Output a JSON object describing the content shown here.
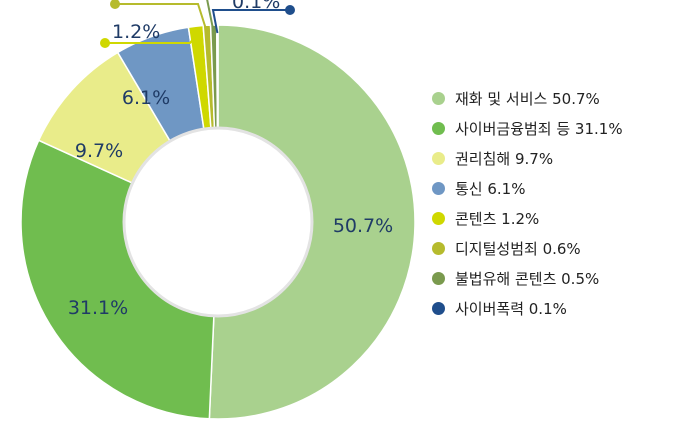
{
  "chart_data": {
    "type": "pie",
    "categories": [
      "재화 및 서비스",
      "사이버금융범죄 등",
      "권리침해",
      "통신",
      "콘텐츠",
      "디지털성범죄",
      "불법유해 콘텐츠",
      "사이버폭력"
    ],
    "values": [
      50.7,
      31.1,
      9.7,
      6.1,
      1.2,
      0.6,
      0.5,
      0.1
    ],
    "data_labels": [
      "50.7%",
      "31.1%",
      "9.7%",
      "6.1%",
      "1.2%",
      "",
      "",
      "0.1%"
    ],
    "legend_labels": [
      "재화 및 서비스 50.7%",
      "사이버금융범죄 등 31.1%",
      "권리침해 9.7%",
      "통신 6.1%",
      "콘텐츠 1.2%",
      "디지털성범죄 0.6%",
      "불법유해 콘텐츠 0.5%",
      "사이버폭력 0.1%"
    ],
    "colors": [
      "#a9d18e",
      "#70bd4f",
      "#e9ec8a",
      "#6f97c4",
      "#cfd800",
      "#b6bb2d",
      "#7a9a4e",
      "#1f4e8c"
    ],
    "legend": "right",
    "style": "donut"
  }
}
